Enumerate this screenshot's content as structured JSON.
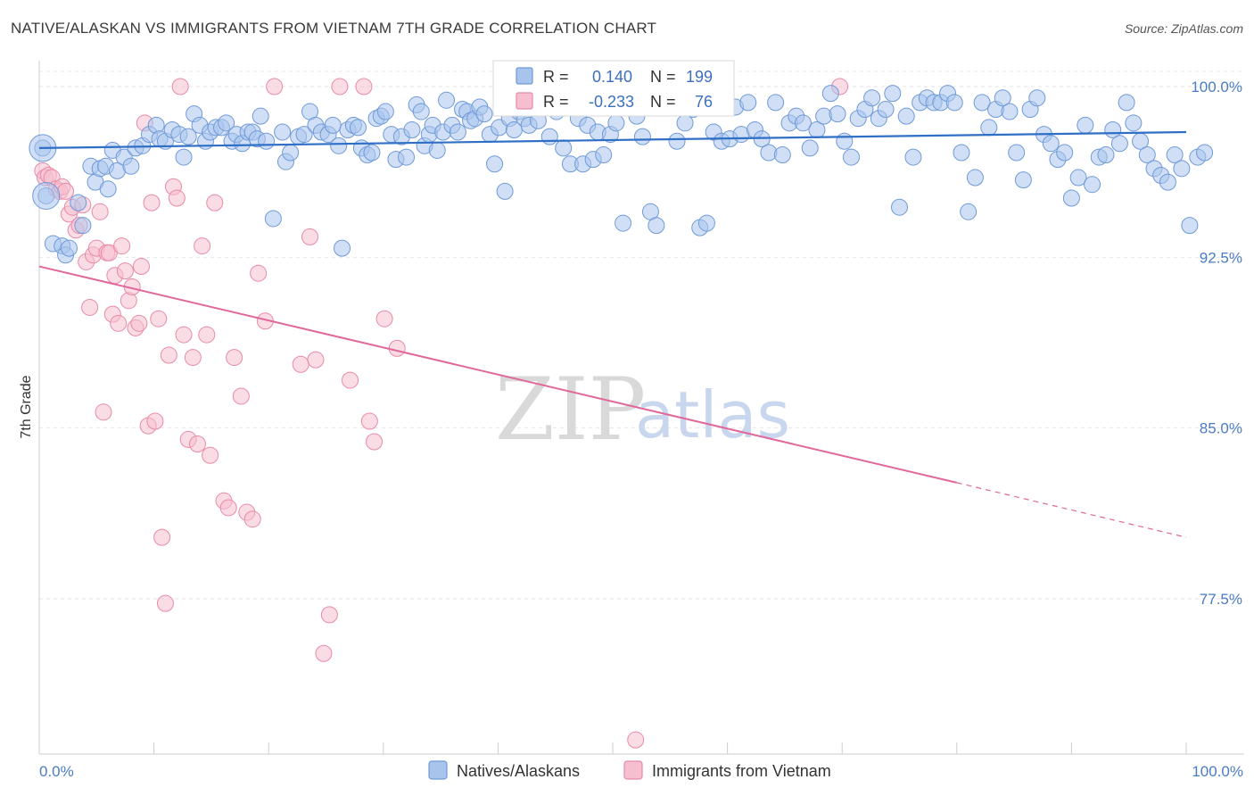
{
  "title": "NATIVE/ALASKAN VS IMMIGRANTS FROM VIETNAM 7TH GRADE CORRELATION CHART",
  "source": "Source: ZipAtlas.com",
  "watermark": {
    "zip": "ZIP",
    "atlas": "atlas"
  },
  "colors": {
    "blue_fill": "#a9c4ec",
    "blue_stroke": "#6f9ad8",
    "blue_line": "#2f6fc6",
    "pink_fill": "#f5bfd0",
    "pink_stroke": "#e88aa8",
    "pink_line": "#e0689a",
    "grid": "#e6e6e6",
    "axis": "#cccccc"
  },
  "legend_box": {
    "rows": [
      {
        "r_label": "R =",
        "r_value": "0.140",
        "n_label": "N =",
        "n_value": "199"
      },
      {
        "r_label": "R =",
        "r_value": "-0.233",
        "n_label": "N =",
        "n_value": "76"
      }
    ]
  },
  "bottom_legend": [
    "Natives/Alaskans",
    "Immigrants from Vietnam"
  ],
  "chart_data": {
    "type": "scatter",
    "title": "NATIVE/ALASKAN VS IMMIGRANTS FROM VIETNAM 7TH GRADE CORRELATION CHART",
    "xlabel": "",
    "ylabel": "7th Grade",
    "xlim": [
      0,
      105
    ],
    "ylim": [
      71.0,
      101.5
    ],
    "x_tick_labels": [
      "0.0%",
      "100.0%"
    ],
    "y_ticks": [
      77.5,
      85.0,
      92.5,
      100.0
    ],
    "y_tick_labels": [
      "77.5%",
      "85.0%",
      "92.5%",
      "100.0%"
    ],
    "series": [
      {
        "name": "Natives/Alaskans",
        "r": 0.14,
        "n": 199,
        "trend": {
          "x0": 0,
          "y0": 97.3,
          "x1": 100,
          "y1": 98.0
        },
        "points": [
          [
            0.3,
            97.3
          ],
          [
            0.6,
            95.2
          ],
          [
            1.2,
            93.1
          ],
          [
            2.0,
            93.0
          ],
          [
            2.3,
            92.6
          ],
          [
            2.6,
            92.9
          ],
          [
            3.4,
            94.9
          ],
          [
            3.8,
            93.9
          ],
          [
            4.5,
            96.5
          ],
          [
            4.9,
            95.8
          ],
          [
            5.3,
            96.4
          ],
          [
            5.8,
            96.5
          ],
          [
            6.0,
            95.5
          ],
          [
            6.4,
            97.2
          ],
          [
            6.8,
            96.3
          ],
          [
            7.4,
            96.9
          ],
          [
            8.0,
            96.5
          ],
          [
            8.4,
            97.3
          ],
          [
            9.0,
            97.4
          ],
          [
            9.6,
            97.9
          ],
          [
            10.2,
            98.3
          ],
          [
            10.5,
            97.7
          ],
          [
            11.0,
            97.6
          ],
          [
            11.6,
            98.1
          ],
          [
            12.2,
            97.9
          ],
          [
            12.6,
            96.9
          ],
          [
            13.0,
            97.8
          ],
          [
            13.5,
            98.8
          ],
          [
            14.0,
            98.3
          ],
          [
            14.5,
            97.6
          ],
          [
            14.9,
            98.0
          ],
          [
            15.4,
            98.2
          ],
          [
            15.9,
            98.2
          ],
          [
            16.3,
            98.4
          ],
          [
            16.8,
            97.6
          ],
          [
            17.2,
            97.9
          ],
          [
            17.7,
            97.5
          ],
          [
            18.2,
            98.0
          ],
          [
            18.6,
            98.0
          ],
          [
            19.0,
            97.7
          ],
          [
            19.3,
            98.7
          ],
          [
            19.8,
            97.6
          ],
          [
            20.4,
            94.2
          ],
          [
            21.2,
            98.0
          ],
          [
            21.5,
            96.7
          ],
          [
            21.9,
            97.1
          ],
          [
            22.6,
            97.8
          ],
          [
            23.1,
            97.9
          ],
          [
            23.6,
            98.9
          ],
          [
            24.1,
            98.3
          ],
          [
            24.6,
            98.0
          ],
          [
            25.2,
            97.9
          ],
          [
            25.6,
            98.3
          ],
          [
            26.1,
            97.4
          ],
          [
            26.4,
            92.9
          ],
          [
            26.9,
            98.1
          ],
          [
            27.4,
            98.3
          ],
          [
            27.8,
            98.2
          ],
          [
            28.1,
            97.3
          ],
          [
            28.6,
            97.0
          ],
          [
            29.0,
            97.1
          ],
          [
            29.4,
            98.6
          ],
          [
            29.8,
            98.7
          ],
          [
            30.2,
            98.9
          ],
          [
            30.7,
            97.9
          ],
          [
            31.1,
            96.8
          ],
          [
            31.6,
            97.8
          ],
          [
            32.0,
            96.9
          ],
          [
            32.5,
            98.1
          ],
          [
            32.9,
            99.2
          ],
          [
            33.3,
            98.9
          ],
          [
            33.6,
            97.4
          ],
          [
            34.0,
            97.9
          ],
          [
            34.3,
            98.3
          ],
          [
            34.7,
            97.2
          ],
          [
            35.2,
            98.0
          ],
          [
            35.5,
            99.4
          ],
          [
            36.0,
            98.3
          ],
          [
            36.5,
            98.0
          ],
          [
            36.9,
            99.0
          ],
          [
            37.3,
            98.9
          ],
          [
            37.6,
            98.5
          ],
          [
            38.0,
            98.6
          ],
          [
            38.4,
            99.1
          ],
          [
            38.8,
            98.8
          ],
          [
            39.3,
            97.9
          ],
          [
            39.7,
            96.6
          ],
          [
            40.1,
            98.2
          ],
          [
            40.6,
            95.4
          ],
          [
            41.0,
            98.6
          ],
          [
            41.4,
            98.1
          ],
          [
            41.8,
            98.9
          ],
          [
            42.3,
            98.6
          ],
          [
            42.7,
            98.3
          ],
          [
            43.1,
            99.3
          ],
          [
            43.5,
            98.5
          ],
          [
            43.9,
            99.1
          ],
          [
            44.5,
            97.8
          ],
          [
            45.1,
            98.9
          ],
          [
            45.7,
            97.3
          ],
          [
            46.3,
            96.6
          ],
          [
            47.0,
            98.6
          ],
          [
            47.4,
            96.6
          ],
          [
            47.8,
            98.3
          ],
          [
            48.3,
            96.8
          ],
          [
            48.7,
            98.0
          ],
          [
            49.2,
            97.0
          ],
          [
            49.8,
            97.9
          ],
          [
            50.3,
            98.4
          ],
          [
            50.9,
            94.0
          ],
          [
            51.5,
            99.3
          ],
          [
            52.1,
            98.7
          ],
          [
            52.6,
            97.8
          ],
          [
            53.3,
            94.5
          ],
          [
            53.8,
            93.9
          ],
          [
            54.5,
            99.1
          ],
          [
            55.1,
            99.4
          ],
          [
            55.6,
            97.6
          ],
          [
            56.3,
            98.4
          ],
          [
            57.0,
            99.0
          ],
          [
            57.6,
            93.8
          ],
          [
            58.2,
            94.0
          ],
          [
            58.8,
            98.0
          ],
          [
            59.5,
            97.6
          ],
          [
            60.2,
            97.7
          ],
          [
            60.7,
            99.1
          ],
          [
            61.2,
            97.9
          ],
          [
            61.8,
            99.3
          ],
          [
            62.4,
            98.1
          ],
          [
            63.0,
            97.7
          ],
          [
            63.6,
            97.1
          ],
          [
            64.2,
            99.3
          ],
          [
            64.8,
            97.0
          ],
          [
            65.4,
            98.4
          ],
          [
            66.0,
            98.7
          ],
          [
            66.6,
            98.4
          ],
          [
            67.2,
            97.3
          ],
          [
            67.8,
            98.1
          ],
          [
            68.4,
            98.7
          ],
          [
            69.0,
            99.7
          ],
          [
            69.6,
            98.8
          ],
          [
            70.2,
            97.6
          ],
          [
            70.8,
            96.9
          ],
          [
            71.4,
            98.6
          ],
          [
            72.0,
            99.0
          ],
          [
            72.6,
            99.5
          ],
          [
            73.2,
            98.6
          ],
          [
            73.8,
            99.0
          ],
          [
            74.4,
            99.7
          ],
          [
            75.0,
            94.7
          ],
          [
            75.6,
            98.7
          ],
          [
            76.2,
            96.9
          ],
          [
            76.8,
            99.3
          ],
          [
            77.4,
            99.5
          ],
          [
            78.0,
            99.3
          ],
          [
            78.6,
            99.3
          ],
          [
            79.2,
            99.7
          ],
          [
            79.8,
            99.3
          ],
          [
            80.4,
            97.1
          ],
          [
            81.0,
            94.5
          ],
          [
            81.6,
            96.0
          ],
          [
            82.2,
            99.3
          ],
          [
            82.8,
            98.2
          ],
          [
            83.4,
            99.0
          ],
          [
            84.0,
            99.5
          ],
          [
            84.6,
            98.9
          ],
          [
            85.2,
            97.1
          ],
          [
            85.8,
            95.9
          ],
          [
            86.4,
            99.0
          ],
          [
            87.0,
            99.5
          ],
          [
            87.6,
            97.9
          ],
          [
            88.2,
            97.5
          ],
          [
            88.8,
            96.8
          ],
          [
            89.4,
            97.1
          ],
          [
            90.0,
            95.1
          ],
          [
            90.6,
            96.0
          ],
          [
            91.2,
            98.3
          ],
          [
            91.8,
            95.7
          ],
          [
            92.4,
            96.9
          ],
          [
            93.0,
            97.0
          ],
          [
            93.6,
            98.1
          ],
          [
            94.2,
            97.5
          ],
          [
            94.8,
            99.3
          ],
          [
            95.4,
            98.4
          ],
          [
            96.0,
            97.6
          ],
          [
            96.6,
            97.0
          ],
          [
            97.2,
            96.4
          ],
          [
            97.8,
            96.1
          ],
          [
            98.4,
            95.8
          ],
          [
            99.0,
            97.0
          ],
          [
            99.6,
            96.4
          ],
          [
            100.3,
            93.9
          ],
          [
            101.0,
            96.9
          ],
          [
            101.6,
            97.1
          ]
        ],
        "big_points": [
          [
            0.3,
            97.3
          ],
          [
            0.6,
            95.2
          ]
        ]
      },
      {
        "name": "Immigrants from Vietnam",
        "r": -0.233,
        "n": 76,
        "trend": {
          "x0": 0,
          "y0": 92.1,
          "x1": 80,
          "y1": 82.6
        },
        "trend_dashed": {
          "x0": 80,
          "y0": 82.6,
          "x1": 100,
          "y1": 80.2
        },
        "points": [
          [
            0.3,
            96.3
          ],
          [
            0.5,
            96.0
          ],
          [
            0.8,
            96.1
          ],
          [
            1.1,
            96.0
          ],
          [
            1.5,
            95.5
          ],
          [
            1.8,
            95.4
          ],
          [
            2.0,
            95.6
          ],
          [
            2.3,
            95.4
          ],
          [
            2.6,
            94.4
          ],
          [
            2.9,
            94.7
          ],
          [
            3.2,
            93.7
          ],
          [
            3.5,
            93.9
          ],
          [
            3.8,
            94.8
          ],
          [
            4.1,
            92.3
          ],
          [
            4.4,
            90.3
          ],
          [
            4.7,
            92.6
          ],
          [
            5.0,
            92.9
          ],
          [
            5.3,
            94.5
          ],
          [
            5.6,
            85.7
          ],
          [
            5.9,
            92.7
          ],
          [
            6.1,
            92.7
          ],
          [
            6.4,
            90.0
          ],
          [
            6.6,
            91.7
          ],
          [
            6.9,
            89.6
          ],
          [
            7.2,
            93.0
          ],
          [
            7.5,
            91.9
          ],
          [
            7.8,
            90.6
          ],
          [
            8.1,
            91.2
          ],
          [
            8.4,
            89.4
          ],
          [
            8.7,
            89.6
          ],
          [
            8.9,
            92.1
          ],
          [
            9.2,
            98.4
          ],
          [
            9.5,
            85.1
          ],
          [
            9.8,
            94.9
          ],
          [
            10.1,
            85.3
          ],
          [
            10.4,
            89.8
          ],
          [
            10.7,
            80.2
          ],
          [
            11.0,
            77.3
          ],
          [
            11.3,
            88.2
          ],
          [
            11.7,
            95.6
          ],
          [
            12.0,
            95.1
          ],
          [
            12.3,
            100.0
          ],
          [
            12.6,
            89.1
          ],
          [
            13.0,
            84.5
          ],
          [
            13.4,
            88.1
          ],
          [
            13.8,
            84.3
          ],
          [
            14.2,
            93.0
          ],
          [
            14.6,
            89.1
          ],
          [
            14.9,
            83.8
          ],
          [
            15.3,
            94.9
          ],
          [
            16.1,
            81.8
          ],
          [
            16.5,
            81.5
          ],
          [
            17.0,
            88.1
          ],
          [
            17.6,
            86.4
          ],
          [
            18.1,
            81.3
          ],
          [
            18.6,
            81.0
          ],
          [
            19.1,
            91.8
          ],
          [
            19.7,
            89.7
          ],
          [
            20.5,
            100.0
          ],
          [
            22.8,
            87.8
          ],
          [
            23.6,
            93.4
          ],
          [
            24.1,
            88.0
          ],
          [
            24.8,
            75.1
          ],
          [
            25.3,
            76.8
          ],
          [
            26.2,
            100.0
          ],
          [
            27.1,
            87.1
          ],
          [
            28.3,
            100.0
          ],
          [
            28.8,
            85.3
          ],
          [
            29.2,
            84.4
          ],
          [
            30.1,
            89.8
          ],
          [
            31.2,
            88.5
          ],
          [
            52.0,
            71.3
          ],
          [
            69.8,
            100.0
          ]
        ]
      }
    ]
  }
}
